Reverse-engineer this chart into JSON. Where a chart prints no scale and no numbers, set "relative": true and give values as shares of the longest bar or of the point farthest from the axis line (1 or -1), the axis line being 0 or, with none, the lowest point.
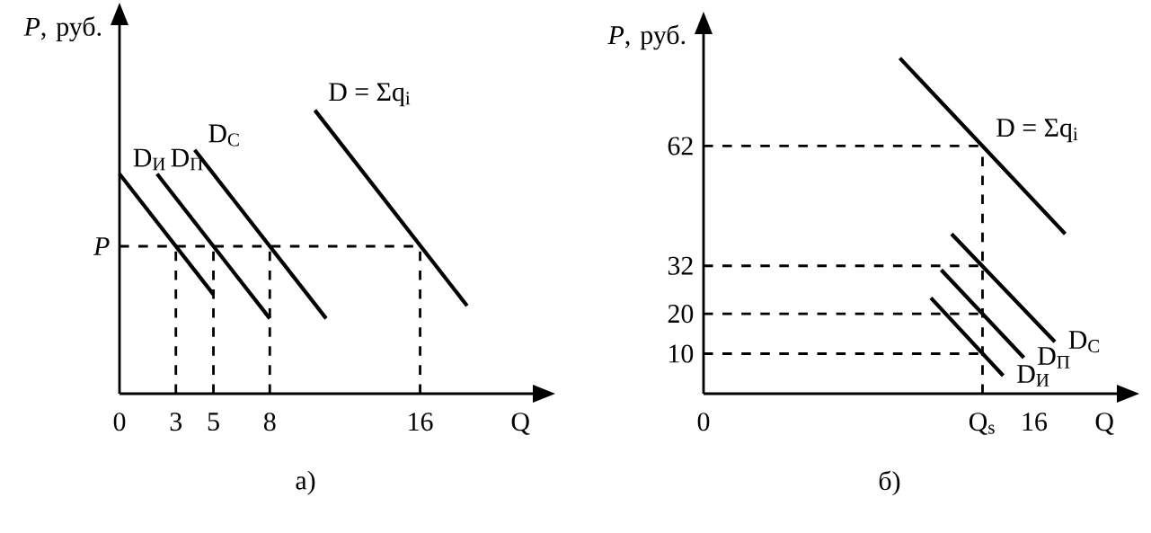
{
  "chart_data": [
    {
      "type": "line",
      "relative": true,
      "xlabel": "Q",
      "ylabel": "*P*, руб.",
      "xlim": [
        0,
        22
      ],
      "xticks": [
        0,
        3,
        5,
        8,
        16
      ],
      "series": [
        {
          "color": "#000000",
          "x": [
            0,
            5
          ],
          "values": [
            0.775,
            0.35
          ]
        },
        {
          "color": "#000000",
          "x": [
            2,
            8
          ],
          "values": [
            0.775,
            0.265
          ]
        },
        {
          "color": "#000000",
          "x": [
            4,
            11
          ],
          "values": [
            0.86,
            0.265
          ]
        },
        {
          "color": "#000000",
          "x": [
            10.4,
            18.5
          ],
          "values": [
            1.0,
            0.31
          ]
        }
      ],
      "ref_lines": [
        {
          "axis": "y",
          "value": 0.52,
          "label": "*P*",
          "line_style": "dashed"
        },
        {
          "axis": "x",
          "value": 3,
          "line_style": "dashed"
        },
        {
          "axis": "x",
          "value": 5,
          "line_style": "dashed"
        },
        {
          "axis": "x",
          "value": 8,
          "line_style": "dashed"
        },
        {
          "axis": "x",
          "value": 16,
          "line_style": "dashed"
        }
      ],
      "annotations": [
        {
          "text": "D$_{И}$",
          "x": 0,
          "y": 0.775
        },
        {
          "text": "D$_{П}$",
          "x": 2,
          "y": 0.775
        },
        {
          "text": "D$_{С}$",
          "x": 4,
          "y": 0.86
        },
        {
          "text": "D = Σq$_{i}$",
          "x": 10.4,
          "y": 1.0
        },
        "а)"
      ]
    },
    {
      "type": "line",
      "xlabel": "Q",
      "ylabel": "*P*, руб.",
      "xlim": [
        0,
        20
      ],
      "xticks": [
        0,
        {
          "value": 13.5,
          "label": "Q$_{s}$"
        },
        16
      ],
      "ylim": [
        0,
        90
      ],
      "yticks": [
        10,
        20,
        32,
        62
      ],
      "series": [
        {
          "color": "#000000",
          "x": [
            11,
            14.5
          ],
          "values": [
            24,
            4.5
          ]
        },
        {
          "color": "#000000",
          "x": [
            11.5,
            15.5
          ],
          "values": [
            31,
            9
          ]
        },
        {
          "color": "#000000",
          "x": [
            12,
            17
          ],
          "values": [
            40,
            13
          ]
        },
        {
          "color": "#000000",
          "x": [
            9.5,
            17.5
          ],
          "values": [
            84,
            40
          ]
        }
      ],
      "ref_lines": [
        {
          "axis": "y",
          "value": 10,
          "line_style": "dashed"
        },
        {
          "axis": "y",
          "value": 20,
          "line_style": "dashed"
        },
        {
          "axis": "y",
          "value": 32,
          "line_style": "dashed"
        },
        {
          "axis": "y",
          "value": 62,
          "line_style": "dashed"
        },
        {
          "axis": "x",
          "value": 13.5,
          "line_style": "dashed"
        }
      ],
      "annotations": [
        {
          "text": "D$_{И}$",
          "x": 14.5,
          "y": 4.5
        },
        {
          "text": "D$_{П}$",
          "x": 15.5,
          "y": 9
        },
        {
          "text": "D$_{С}$",
          "x": 17,
          "y": 13
        },
        {
          "text": "D = Σq$_{i}$",
          "x": 13.5,
          "y": 62
        },
        "б)"
      ]
    }
  ]
}
